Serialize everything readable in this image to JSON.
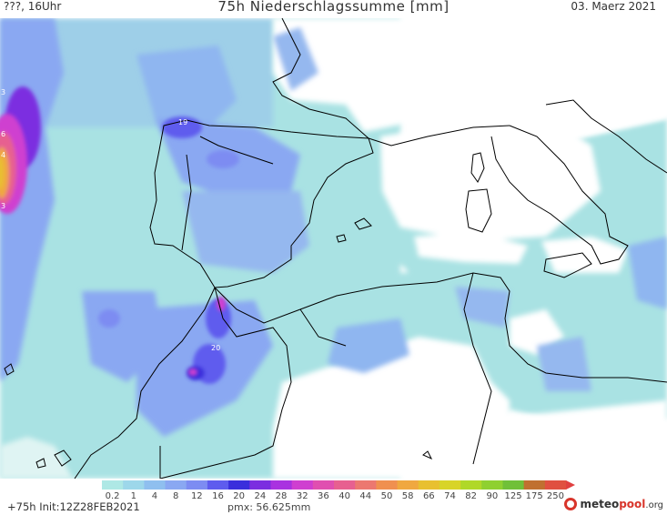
{
  "header": {
    "time_label": "???, 16Uhr",
    "title": "75h Niederschlagssumme [mm]",
    "date": "03. Maerz 2021"
  },
  "legend": {
    "ticks": [
      "0.2",
      "1",
      "4",
      "8",
      "12",
      "16",
      "20",
      "24",
      "28",
      "32",
      "36",
      "40",
      "44",
      "50",
      "58",
      "66",
      "74",
      "82",
      "90",
      "125",
      "175",
      "250"
    ],
    "colors": [
      "#aee8e5",
      "#9dd7ea",
      "#8fbfef",
      "#8aa8f2",
      "#7d8cf2",
      "#5e5cee",
      "#3a2fdc",
      "#7b2de0",
      "#a932e0",
      "#cf3fd0",
      "#e04fb0",
      "#e76090",
      "#ec7870",
      "#f09050",
      "#f0a840",
      "#e8c030",
      "#d8d428",
      "#b0d828",
      "#8fd030",
      "#70c038",
      "#c07030",
      "#e05040"
    ],
    "arrow_color": "#e04040"
  },
  "footer": {
    "run_label": "+75h Init:12Z28FEB2021",
    "pmx": "pmx: 56.625mm",
    "brand_part1": "meteo",
    "brand_part2": "pool",
    "brand_tld": ".org"
  },
  "map_labels": {
    "galicia_max": "19",
    "morocco_max": "20",
    "atlantic_a": "3",
    "atlantic_b": "6",
    "atlantic_c": "4",
    "atlantic_d": "3"
  }
}
